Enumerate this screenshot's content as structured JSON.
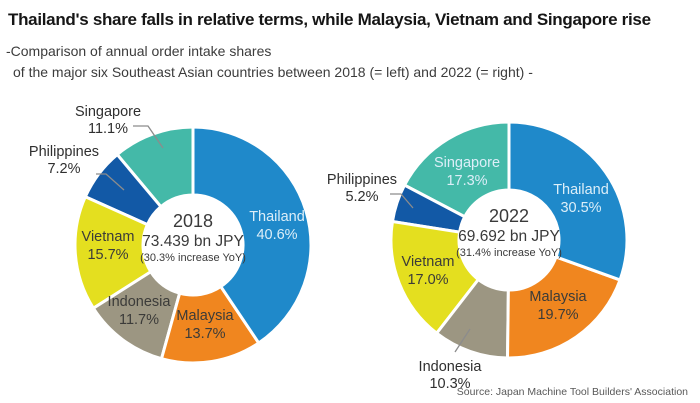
{
  "header": {
    "title": "Thailand's share falls in relative terms, while Malaysia, Vietnam and Singapore rise",
    "subtitle_line1": "-Comparison of annual order intake shares",
    "subtitle_line2": "of the major six Southeast Asian countries between 2018 (= left) and 2022 (= right) -"
  },
  "source": "Source: Japan Machine Tool Builders' Association",
  "palette": {
    "Thailand": "#1f89ca",
    "Malaysia": "#f0861f",
    "Indonesia": "#9c9682",
    "Vietnam": "#e4df1f",
    "Philippines": "#1259a6",
    "Singapore": "#44b9a8"
  },
  "label_colors": {
    "light": "#dceef8",
    "dark": "#3b3b39"
  },
  "chart_data": [
    {
      "type": "pie",
      "subtype": "donut",
      "title": "2018",
      "start_angle_deg": 0,
      "direction": "clockwise",
      "unit": "%",
      "center_label": {
        "year": "2018",
        "total": "73.439 bn JPY",
        "yoy": "(30.3% increase YoY)"
      },
      "slices": [
        {
          "name": "Thailand",
          "value": 40.6,
          "label": "40.6%",
          "label_placement": "inside"
        },
        {
          "name": "Malaysia",
          "value": 13.7,
          "label": "13.7%",
          "label_placement": "inside"
        },
        {
          "name": "Indonesia",
          "value": 11.7,
          "label": "11.7%",
          "label_placement": "inside"
        },
        {
          "name": "Vietnam",
          "value": 15.7,
          "label": "15.7%",
          "label_placement": "inside"
        },
        {
          "name": "Philippines",
          "value": 7.2,
          "label": "7.2%",
          "label_placement": "outside"
        },
        {
          "name": "Singapore",
          "value": 11.1,
          "label": "11.1%",
          "label_placement": "outside"
        }
      ]
    },
    {
      "type": "pie",
      "subtype": "donut",
      "title": "2022",
      "start_angle_deg": 0,
      "direction": "clockwise",
      "unit": "%",
      "center_label": {
        "year": "2022",
        "total": "69.692 bn JPY",
        "yoy": "(31.4% increase YoY)"
      },
      "slices": [
        {
          "name": "Thailand",
          "value": 30.5,
          "label": "30.5%",
          "label_placement": "inside"
        },
        {
          "name": "Malaysia",
          "value": 19.7,
          "label": "19.7%",
          "label_placement": "inside"
        },
        {
          "name": "Indonesia",
          "value": 10.3,
          "label": "10.3%",
          "label_placement": "outside"
        },
        {
          "name": "Vietnam",
          "value": 17.0,
          "label": "17.0%",
          "label_placement": "inside"
        },
        {
          "name": "Philippines",
          "value": 5.2,
          "label": "5.2%",
          "label_placement": "outside"
        },
        {
          "name": "Singapore",
          "value": 17.3,
          "label": "17.3%",
          "label_placement": "inside"
        }
      ]
    }
  ]
}
